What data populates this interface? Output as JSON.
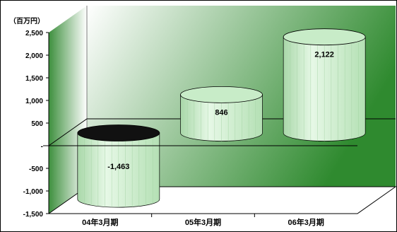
{
  "chart_data": {
    "type": "bar",
    "style": "3d-cylinder",
    "unit_label": "（百万円）",
    "categories": [
      "04年3月期",
      "05年3月期",
      "06年3月期"
    ],
    "values": [
      -1463,
      846,
      2122
    ],
    "value_labels": [
      "-1,463",
      "846",
      "2,122"
    ],
    "yticks": [
      "2,500",
      "2,000",
      "1,500",
      "1,000",
      "500",
      "-",
      "-500",
      "-1,000",
      "-1,500"
    ],
    "ytick_values": [
      2500,
      2000,
      1500,
      1000,
      500,
      0,
      -500,
      -1000,
      -1500
    ],
    "ylim": [
      -1500,
      2500
    ],
    "grid": false,
    "bar_color": "#c8ecc8",
    "background_gradient": [
      "#2f8a2f",
      "#ffffff"
    ],
    "side_wall_gradient": [
      "#3d8f3d",
      "#ffffff"
    ]
  }
}
